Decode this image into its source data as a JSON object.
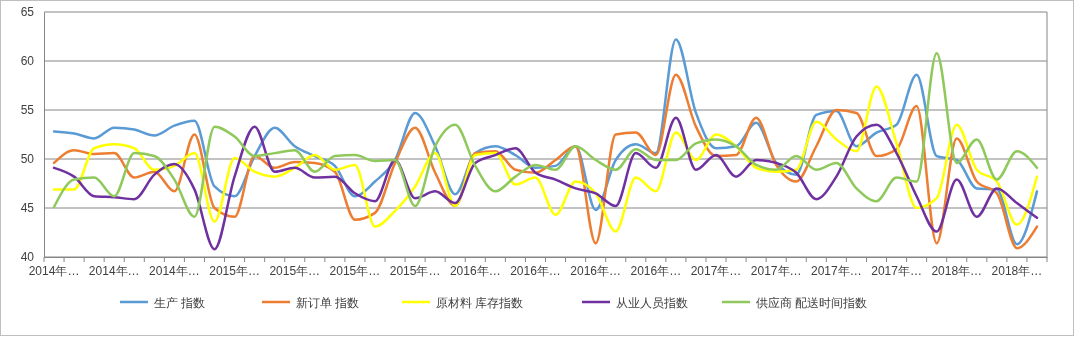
{
  "chart_data": {
    "type": "line",
    "categories": [
      "2014年…",
      null,
      null,
      "2014年…",
      null,
      null,
      "2014年…",
      null,
      null,
      "2015年…",
      null,
      null,
      "2015年…",
      null,
      null,
      "2015年…",
      null,
      null,
      "2015年…",
      null,
      null,
      "2016年…",
      null,
      null,
      "2016年…",
      null,
      null,
      "2016年…",
      null,
      null,
      "2016年…",
      null,
      null,
      "2017年…",
      null,
      null,
      "2017年…",
      null,
      null,
      "2017年…",
      null,
      null,
      "2017年…",
      null,
      null,
      "2018年…",
      null,
      null,
      "2018年…",
      null
    ],
    "ylim": [
      40,
      65
    ],
    "yticks": [
      40,
      45,
      50,
      55,
      60,
      65
    ],
    "grid": "y",
    "legend": "bottom",
    "marker": "none",
    "line_style": "solid",
    "series": [
      {
        "name": "生产 指数",
        "color": "#5b9bd5",
        "values": [
          52.8,
          52.6,
          52.1,
          53.2,
          53.0,
          52.4,
          53.4,
          53.9,
          47.2,
          46.2,
          50.3,
          53.2,
          51.3,
          50.3,
          49.3,
          46.2,
          47.7,
          49.9,
          54.7,
          51.3,
          46.4,
          50.6,
          51.3,
          50.4,
          49.1,
          49.3,
          51.3,
          44.8,
          49.9,
          51.5,
          50.6,
          62.2,
          54.7,
          51.1,
          51.3,
          53.7,
          49.6,
          48.4,
          54.5,
          54.9,
          51.3,
          52.7,
          53.5,
          58.6,
          50.3,
          49.9,
          47.0,
          46.9,
          41.3,
          46.7
        ]
      },
      {
        "name": "新订单 指数",
        "color": "#ed7d31",
        "values": [
          49.6,
          50.9,
          50.5,
          50.6,
          48.1,
          48.7,
          46.7,
          52.5,
          45.0,
          44.1,
          50.3,
          49.1,
          49.7,
          49.6,
          48.7,
          43.8,
          44.5,
          49.6,
          53.2,
          48.6,
          45.2,
          50.6,
          50.8,
          48.9,
          48.6,
          49.9,
          51.3,
          41.4,
          52.5,
          52.7,
          50.4,
          58.6,
          53.3,
          50.3,
          50.4,
          54.2,
          49.4,
          47.7,
          51.3,
          55.0,
          54.7,
          50.3,
          51.0,
          55.4,
          41.4,
          52.1,
          47.7,
          46.5,
          40.9,
          43.1
        ]
      },
      {
        "name": "原材料 库存指数",
        "color": "#ffff00",
        "values": [
          46.9,
          46.9,
          51.1,
          51.5,
          51.1,
          48.9,
          49.3,
          50.6,
          43.6,
          50.1,
          48.7,
          48.2,
          49.1,
          50.4,
          48.9,
          49.4,
          43.1,
          44.7,
          47.2,
          50.6,
          45.2,
          50.4,
          50.6,
          47.4,
          48.1,
          44.3,
          47.7,
          46.5,
          42.6,
          48.1,
          46.7,
          52.7,
          49.9,
          52.5,
          51.3,
          49.1,
          48.7,
          48.9,
          53.8,
          52.0,
          50.8,
          57.4,
          51.6,
          45.0,
          46.0,
          53.5,
          48.9,
          47.7,
          43.3,
          48.2
        ]
      },
      {
        "name": "从业人员指数",
        "color": "#7030a0",
        "values": [
          49.1,
          48.2,
          46.2,
          46.1,
          45.9,
          48.4,
          49.5,
          46.9,
          40.8,
          48.2,
          53.3,
          48.7,
          49.1,
          48.1,
          48.2,
          46.5,
          45.7,
          49.9,
          46.0,
          46.7,
          45.5,
          49.6,
          50.4,
          51.1,
          48.6,
          47.9,
          47.0,
          46.5,
          45.2,
          50.6,
          49.1,
          54.2,
          48.9,
          50.4,
          48.2,
          49.9,
          49.6,
          48.6,
          45.9,
          48.2,
          52.3,
          53.5,
          50.6,
          46.2,
          42.6,
          47.9,
          44.1,
          47.0,
          45.5,
          44.0
        ]
      },
      {
        "name": "供应商 配送时间指数",
        "color": "#8fc95b",
        "values": [
          45.1,
          47.9,
          48.1,
          46.2,
          50.6,
          50.3,
          47.9,
          44.1,
          53.3,
          52.3,
          50.3,
          50.6,
          50.9,
          48.7,
          50.3,
          50.4,
          49.8,
          49.9,
          45.2,
          51.3,
          53.5,
          49.3,
          46.7,
          48.2,
          49.4,
          48.9,
          51.3,
          49.9,
          48.9,
          51.0,
          49.9,
          49.9,
          51.6,
          52.0,
          51.3,
          49.4,
          48.9,
          50.3,
          48.9,
          49.6,
          47.0,
          45.7,
          48.1,
          47.7,
          60.8,
          49.6,
          52.0,
          47.9,
          50.8,
          49.1
        ]
      }
    ]
  }
}
